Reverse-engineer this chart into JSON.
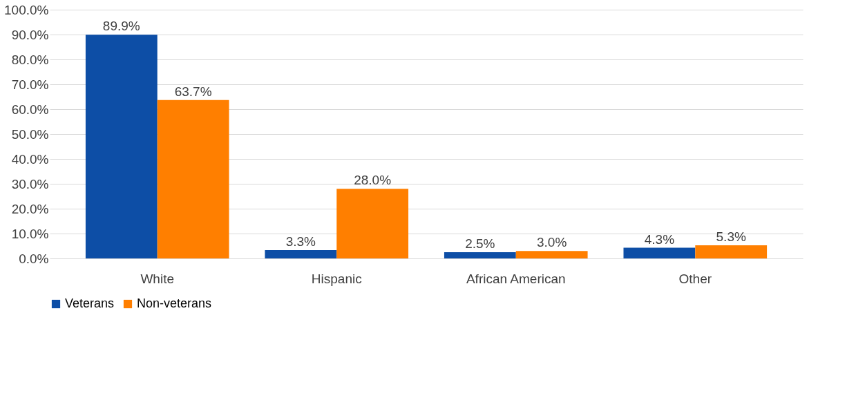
{
  "chart_data": {
    "type": "bar",
    "categories": [
      "White",
      "Hispanic",
      "African American",
      "Other"
    ],
    "series": [
      {
        "name": "Veterans",
        "color": "#0d4ea6",
        "values": [
          89.9,
          3.3,
          2.5,
          4.3
        ]
      },
      {
        "name": "Non-veterans",
        "color": "#ff7f00",
        "values": [
          63.7,
          28.0,
          3.0,
          5.3
        ]
      }
    ],
    "value_labels": [
      [
        "89.9%",
        "3.3%",
        "2.5%",
        "4.3%"
      ],
      [
        "63.7%",
        "28.0%",
        "3.0%",
        "5.3%"
      ]
    ],
    "ylim": [
      0,
      100
    ],
    "yticks": [
      {
        "value": 0,
        "label": "0.0%"
      },
      {
        "value": 10,
        "label": "10.0%"
      },
      {
        "value": 20,
        "label": "20.0%"
      },
      {
        "value": 30,
        "label": "30.0%"
      },
      {
        "value": 40,
        "label": "40.0%"
      },
      {
        "value": 50,
        "label": "50.0%"
      },
      {
        "value": 60,
        "label": "60.0%"
      },
      {
        "value": 70,
        "label": "70.0%"
      },
      {
        "value": 80,
        "label": "80.0%"
      },
      {
        "value": 90,
        "label": "90.0%"
      },
      {
        "value": 100,
        "label": "100.0%"
      }
    ],
    "grid": "y",
    "legend": "bottom"
  }
}
